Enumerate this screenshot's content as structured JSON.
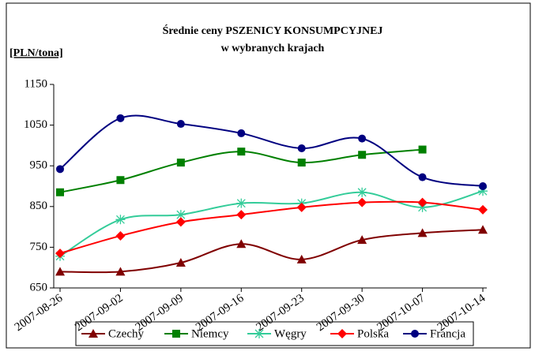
{
  "chart_data": {
    "type": "line",
    "title": "Średnie ceny PSZENICY KONSUMPCYJNEJ",
    "subtitle": "w wybranych krajach",
    "y_label": "[PLN/tona]",
    "categories": [
      "2007-08-26",
      "2007-09-02",
      "2007-09-09",
      "2007-09-16",
      "2007-09-23",
      "2007-09-30",
      "2007-10-07",
      "2007-10-14"
    ],
    "series": [
      {
        "name": "Czechy",
        "color": "#800000",
        "marker": "triangle",
        "values": [
          690,
          690,
          712,
          758,
          720,
          768,
          785,
          793
        ]
      },
      {
        "name": "Niemcy",
        "color": "#008000",
        "marker": "square",
        "values": [
          885,
          915,
          958,
          985,
          958,
          977,
          990,
          null
        ]
      },
      {
        "name": "Węgry",
        "color": "#33cc99",
        "marker": "star",
        "values": [
          728,
          818,
          830,
          858,
          858,
          885,
          848,
          888
        ]
      },
      {
        "name": "Polska",
        "color": "#ff0000",
        "marker": "diamond",
        "values": [
          735,
          778,
          812,
          830,
          848,
          860,
          860,
          842
        ]
      },
      {
        "name": "Francja",
        "color": "#000080",
        "marker": "circle",
        "values": [
          942,
          1067,
          1053,
          1030,
          993,
          1017,
          922,
          900
        ]
      }
    ],
    "ylim": [
      650,
      1150
    ],
    "yticks": [
      650,
      750,
      850,
      950,
      1050,
      1150
    ],
    "grid": false,
    "legend": "bottom"
  }
}
